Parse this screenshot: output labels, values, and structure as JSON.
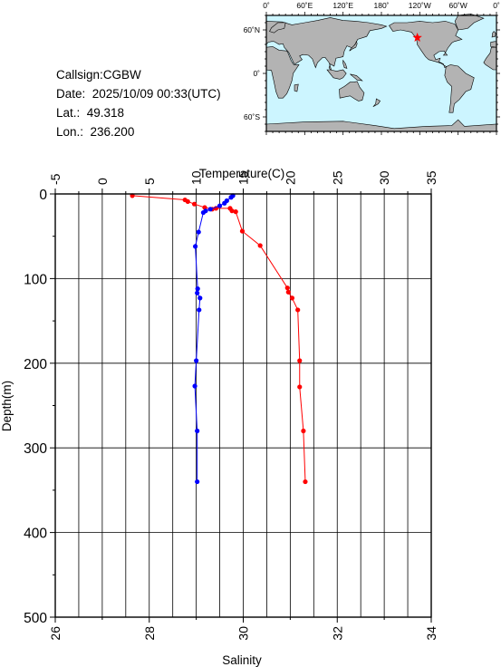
{
  "station": {
    "callsign_line": "Callsign:CGBW",
    "date_line": "Date:  2025/10/09 00:33(UTC)",
    "lat_line": "Lat.:  49.318",
    "lon_line": "Lon.:  236.200"
  },
  "map": {
    "lon_ticks": [
      "0˚",
      "60˚E",
      "120˚E",
      "180˚",
      "120˚W",
      "60˚W",
      "0˚"
    ],
    "lat_ticks": [
      "60˚N",
      "0˚",
      "60˚S"
    ],
    "marker": {
      "lat": 49.318,
      "lon": 236.2
    },
    "ocean_color": "#ccf5ff",
    "land_color": "#b3b3b3",
    "marker_color": "#ff0000"
  },
  "chart_data": {
    "type": "line",
    "ylabel": "Depth(m)",
    "ylim": [
      500,
      0
    ],
    "yticks": [
      "0",
      "100",
      "200",
      "300",
      "400",
      "500"
    ],
    "top_axis": {
      "label": "Temperature(C)",
      "range": [
        -5,
        35
      ],
      "ticks": [
        "-5",
        "0",
        "5",
        "10",
        "15",
        "20",
        "25",
        "30",
        "35"
      ]
    },
    "bottom_axis": {
      "label": "Salinity",
      "range": [
        26,
        34
      ],
      "ticks": [
        "26",
        "28",
        "30",
        "32",
        "34"
      ]
    },
    "grid": true,
    "series": [
      {
        "color": "#ff0000",
        "axis": "top",
        "points": [
          {
            "x": 3.2,
            "depth": 2
          },
          {
            "x": 8.8,
            "depth": 7
          },
          {
            "x": 9.1,
            "depth": 9
          },
          {
            "x": 9.8,
            "depth": 12
          },
          {
            "x": 10.9,
            "depth": 16
          },
          {
            "x": 11.7,
            "depth": 18
          },
          {
            "x": 12.1,
            "depth": 17
          },
          {
            "x": 13.6,
            "depth": 17
          },
          {
            "x": 13.8,
            "depth": 20
          },
          {
            "x": 14.2,
            "depth": 21
          },
          {
            "x": 14.9,
            "depth": 44
          },
          {
            "x": 16.8,
            "depth": 61
          },
          {
            "x": 19.7,
            "depth": 111
          },
          {
            "x": 19.8,
            "depth": 116
          },
          {
            "x": 20.2,
            "depth": 123
          },
          {
            "x": 20.8,
            "depth": 137
          },
          {
            "x": 21.0,
            "depth": 197
          },
          {
            "x": 21.0,
            "depth": 228
          },
          {
            "x": 21.4,
            "depth": 280
          },
          {
            "x": 21.6,
            "depth": 340
          }
        ]
      },
      {
        "color": "#0000ff",
        "axis": "bottom",
        "points": [
          {
            "x": 29.78,
            "depth": 2
          },
          {
            "x": 29.74,
            "depth": 4
          },
          {
            "x": 29.65,
            "depth": 8
          },
          {
            "x": 29.6,
            "depth": 11
          },
          {
            "x": 29.5,
            "depth": 14
          },
          {
            "x": 29.3,
            "depth": 18
          },
          {
            "x": 29.2,
            "depth": 20
          },
          {
            "x": 29.15,
            "depth": 22
          },
          {
            "x": 29.05,
            "depth": 45
          },
          {
            "x": 28.98,
            "depth": 62
          },
          {
            "x": 29.03,
            "depth": 112
          },
          {
            "x": 29.02,
            "depth": 117
          },
          {
            "x": 29.08,
            "depth": 123
          },
          {
            "x": 29.06,
            "depth": 137
          },
          {
            "x": 29.0,
            "depth": 197
          },
          {
            "x": 28.97,
            "depth": 227
          },
          {
            "x": 29.02,
            "depth": 280
          },
          {
            "x": 29.02,
            "depth": 340
          }
        ]
      }
    ]
  }
}
